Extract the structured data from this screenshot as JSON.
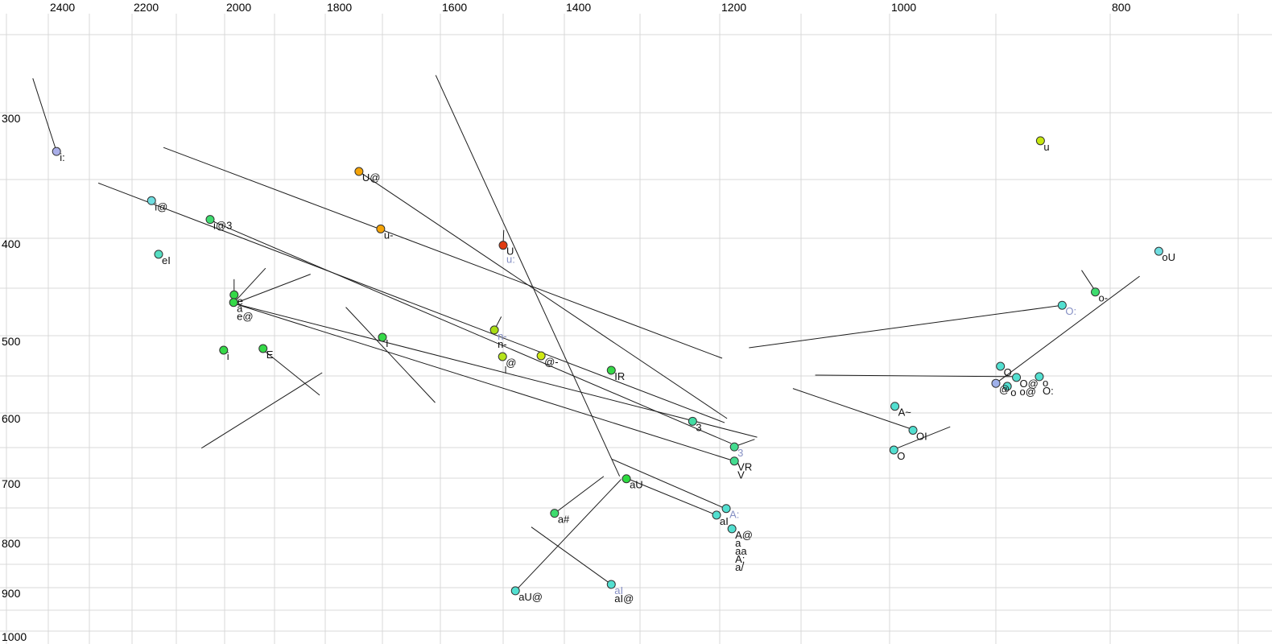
{
  "chart_data": {
    "type": "scatter",
    "title": "",
    "description": "Vowel formant chart: F2 (Hz) decreasing left-to-right on top axis, F1 (Hz) increasing downward on left axis, nonlinear (log-like) scales, gray gridlines, colored vowel points with phonetic labels and black trajectory lines",
    "x_axis": {
      "unit": "Hz",
      "tick_labels": [
        2400,
        2200,
        2000,
        1800,
        1600,
        1400,
        1200,
        1000,
        800
      ],
      "gridline_values": [
        2500,
        2400,
        2300,
        2200,
        2100,
        2000,
        1900,
        1800,
        1700,
        1600,
        1500,
        1400,
        1300,
        1200,
        1100,
        1000,
        900,
        800,
        700
      ],
      "direction": "reversed"
    },
    "y_axis": {
      "unit": "Hz",
      "tick_labels": [
        300,
        400,
        500,
        600,
        700,
        800,
        900,
        1000
      ],
      "gridline_values": [
        250,
        300,
        350,
        400,
        450,
        500,
        550,
        600,
        650,
        700,
        750,
        800,
        850,
        900,
        950,
        1000
      ],
      "direction": "downward"
    },
    "colors": {
      "grid": "#d9d9d9",
      "trajectory": "#1c1c1c",
      "label_black": "#111111",
      "label_blue": "#8690c4",
      "point_stroke": "#333333"
    },
    "points": [
      {
        "f2": 2380,
        "f1": 329,
        "color": "#a9aee8",
        "labels": [
          {
            "t": "i:",
            "c": "black"
          }
        ]
      },
      {
        "f2": 2156,
        "f1": 368,
        "color": "#6fdde0",
        "labels": [
          {
            "t": "i@",
            "c": "black"
          }
        ]
      },
      {
        "f2": 2030,
        "f1": 384,
        "color": "#3edc6e",
        "labels": [
          {
            "t": "i@3",
            "c": "black"
          }
        ]
      },
      {
        "f2": 2140,
        "f1": 416,
        "color": "#55dec2",
        "labels": [
          {
            "t": "eI",
            "c": "black"
          }
        ]
      },
      {
        "f2": 1981,
        "f1": 457,
        "color": "#35d948",
        "labels": [
          {
            "t": "e",
            "c": "black"
          }
        ]
      },
      {
        "f2": 1982,
        "f1": 465,
        "color": "#35d948",
        "labels": [
          {
            "t": "a",
            "c": "black"
          },
          {
            "t": "e@",
            "c": "black"
          }
        ]
      },
      {
        "f2": 2002,
        "f1": 518,
        "color": "#35d948",
        "labels": [
          {
            "t": "i",
            "c": "black"
          }
        ]
      },
      {
        "f2": 1923,
        "f1": 516,
        "color": "#35d948",
        "labels": [
          {
            "t": "E",
            "c": "black"
          }
        ]
      },
      {
        "f2": 1741,
        "f1": 344,
        "color": "#f4a307",
        "labels": [
          {
            "t": "U@",
            "c": "black"
          }
        ]
      },
      {
        "f2": 1703,
        "f1": 392,
        "color": "#f4a307",
        "labels": [
          {
            "t": "u-",
            "c": "black"
          }
        ]
      },
      {
        "f2": 1500,
        "f1": 407,
        "color": "#e03c12",
        "labels": [
          {
            "t": "U",
            "c": "black"
          },
          {
            "t": "u:",
            "c": "blue"
          }
        ]
      },
      {
        "f2": 1514,
        "f1": 494,
        "color": "#a8dc12",
        "labels": [
          {
            "t": "n-",
            "c": "blue"
          },
          {
            "t": "n-",
            "c": "black"
          }
        ]
      },
      {
        "f2": 1501,
        "f1": 526,
        "color": "#b5e41c",
        "labels": [
          {
            "t": "@",
            "c": "black"
          }
        ]
      },
      {
        "f2": 1438,
        "f1": 525,
        "color": "#cfe912",
        "labels": [
          {
            "t": "@-",
            "c": "black"
          }
        ]
      },
      {
        "f2": 1700,
        "f1": 502,
        "color": "#35d948",
        "labels": [
          {
            "t": "I",
            "c": "black"
          }
        ]
      },
      {
        "f2": 1338,
        "f1": 543,
        "color": "#35d948",
        "labels": [
          {
            "t": "IR",
            "c": "black"
          }
        ]
      },
      {
        "f2": 1234,
        "f1": 612,
        "color": "#43dca4",
        "labels": [
          {
            "t": "3",
            "c": "black"
          }
        ]
      },
      {
        "f2": 1182,
        "f1": 649,
        "color": "#43dc8f",
        "labels": [
          {
            "t": "3",
            "c": "blue"
          }
        ]
      },
      {
        "f2": 1182,
        "f1": 672,
        "color": "#43dc8f",
        "labels": [
          {
            "t": "VR",
            "c": "black"
          },
          {
            "t": "V",
            "c": "black"
          }
        ]
      },
      {
        "f2": 1318,
        "f1": 701,
        "color": "#2cdb40",
        "labels": [
          {
            "t": "aU",
            "c": "black"
          }
        ]
      },
      {
        "f2": 1416,
        "f1": 759,
        "color": "#3edc6e",
        "labels": [
          {
            "t": "a#",
            "c": "black"
          }
        ]
      },
      {
        "f2": 1204,
        "f1": 762,
        "color": "#52dfd0",
        "labels": [
          {
            "t": "aI",
            "c": "black"
          }
        ]
      },
      {
        "f2": 1192,
        "f1": 751,
        "color": "#52dfd0",
        "labels": [
          {
            "t": "A:",
            "c": "blue"
          }
        ]
      },
      {
        "f2": 1185,
        "f1": 785,
        "color": "#52dfd0",
        "labels": [
          {
            "t": "A@",
            "c": "black"
          },
          {
            "t": "a",
            "c": "black"
          },
          {
            "t": "aa",
            "c": "black"
          },
          {
            "t": "A;",
            "c": "black"
          },
          {
            "t": "a/",
            "c": "black"
          }
        ]
      },
      {
        "f2": 1480,
        "f1": 907,
        "color": "#52dfd0",
        "labels": [
          {
            "t": "aU@",
            "c": "black"
          }
        ]
      },
      {
        "f2": 1338,
        "f1": 893,
        "color": "#52dfd0",
        "labels": [
          {
            "t": "aI",
            "c": "blue"
          },
          {
            "t": "aI@",
            "c": "black"
          }
        ]
      },
      {
        "f2": 861,
        "f1": 321,
        "color": "#c6e70e",
        "labels": [
          {
            "t": "u",
            "c": "black"
          }
        ]
      },
      {
        "f2": 762,
        "f1": 413,
        "color": "#6fdde0",
        "labels": [
          {
            "t": "oU",
            "c": "black"
          }
        ]
      },
      {
        "f2": 813,
        "f1": 454,
        "color": "#3edc6e",
        "labels": [
          {
            "t": "o-",
            "c": "black"
          }
        ]
      },
      {
        "f2": 842,
        "f1": 468,
        "color": "#52dfd0",
        "labels": [
          {
            "t": "O:",
            "c": "blue"
          }
        ]
      },
      {
        "f2": 896,
        "f1": 538,
        "color": "#52dfd0",
        "labels": [
          {
            "t": "O",
            "c": "black"
          }
        ]
      },
      {
        "f2": 882,
        "f1": 552,
        "color": "#52dfd0",
        "labels": [
          {
            "t": "O@",
            "c": "black"
          },
          {
            "t": "o@",
            "c": "black"
          }
        ]
      },
      {
        "f2": 862,
        "f1": 551,
        "color": "#52dfd0",
        "labels": [
          {
            "t": "o",
            "c": "black"
          },
          {
            "t": "O:",
            "c": "black"
          }
        ]
      },
      {
        "f2": 900,
        "f1": 560,
        "color": "#9fb0ea",
        "labels": [
          {
            "t": "@",
            "c": "black"
          }
        ]
      },
      {
        "f2": 890,
        "f1": 564,
        "color": "#52dfd0",
        "labels": [
          {
            "t": "o",
            "c": "black"
          }
        ]
      },
      {
        "f2": 995,
        "f1": 591,
        "color": "#52dfd0",
        "labels": [
          {
            "t": "A~",
            "c": "black"
          }
        ]
      },
      {
        "f2": 978,
        "f1": 625,
        "color": "#52dfd0",
        "labels": [
          {
            "t": "OI",
            "c": "black"
          }
        ]
      },
      {
        "f2": 996,
        "f1": 654,
        "color": "#52dfd0",
        "labels": [
          {
            "t": "O",
            "c": "black"
          }
        ]
      }
    ],
    "trajectories": [
      {
        "from": [
          2437,
          278
        ],
        "to": [
          2380,
          329
        ]
      },
      {
        "from": [
          2129,
          326
        ],
        "to": [
          1197,
          528
        ]
      },
      {
        "from": [
          2279,
          353
        ],
        "to": [
          1194,
          614
        ]
      },
      {
        "from": [
          2028,
          385
        ],
        "to": [
          1186,
          644
        ]
      },
      {
        "from": [
          1741,
          344
        ],
        "to": [
          1191,
          608
        ]
      },
      {
        "from": [
          1608,
          276
        ],
        "to": [
          1327,
          697
        ]
      },
      {
        "from": [
          1499,
          393
        ],
        "to": [
          1500,
          406
        ]
      },
      {
        "from": [
          1503,
          480
        ],
        "to": [
          1514,
          494
        ]
      },
      {
        "from": [
          1496,
          538
        ],
        "to": [
          1496,
          547
        ]
      },
      {
        "from": [
          1920,
          519
        ],
        "to": [
          1811,
          576
        ]
      },
      {
        "from": [
          1981,
          441
        ],
        "to": [
          1981,
          455
        ]
      },
      {
        "from": [
          1982,
          466
        ],
        "to": [
          1154,
          635
        ]
      },
      {
        "from": [
          1982,
          466
        ],
        "to": [
          1182,
          672
        ]
      },
      {
        "from": [
          1918,
          430
        ],
        "to": [
          1981,
          465
        ]
      },
      {
        "from": [
          1829,
          436
        ],
        "to": [
          1980,
          466
        ]
      },
      {
        "from": [
          2048,
          651
        ],
        "to": [
          1806,
          546
        ]
      },
      {
        "from": [
          1764,
          470
        ],
        "to": [
          1609,
          586
        ]
      },
      {
        "from": [
          1416,
          759
        ],
        "to": [
          1348,
          697
        ]
      },
      {
        "from": [
          1325,
          702
        ],
        "to": [
          1480,
          907
        ]
      },
      {
        "from": [
          1454,
          782
        ],
        "to": [
          1338,
          893
        ]
      },
      {
        "from": [
          1318,
          700
        ],
        "to": [
          1204,
          762
        ]
      },
      {
        "from": [
          1337,
          669
        ],
        "to": [
          1193,
          751
        ]
      },
      {
        "from": [
          1183,
          649
        ],
        "to": [
          1157,
          638
        ]
      },
      {
        "from": [
          1084,
          549
        ],
        "to": [
          882,
          551
        ]
      },
      {
        "from": [
          900,
          560
        ],
        "to": [
          777,
          438
        ]
      },
      {
        "from": [
          1164,
          515
        ],
        "to": [
          842,
          468
        ]
      },
      {
        "from": [
          825,
          432
        ],
        "to": [
          813,
          453
        ]
      },
      {
        "from": [
          1110,
          567
        ],
        "to": [
          978,
          624
        ]
      },
      {
        "from": [
          996,
          653
        ],
        "to": [
          943,
          620
        ]
      }
    ]
  }
}
